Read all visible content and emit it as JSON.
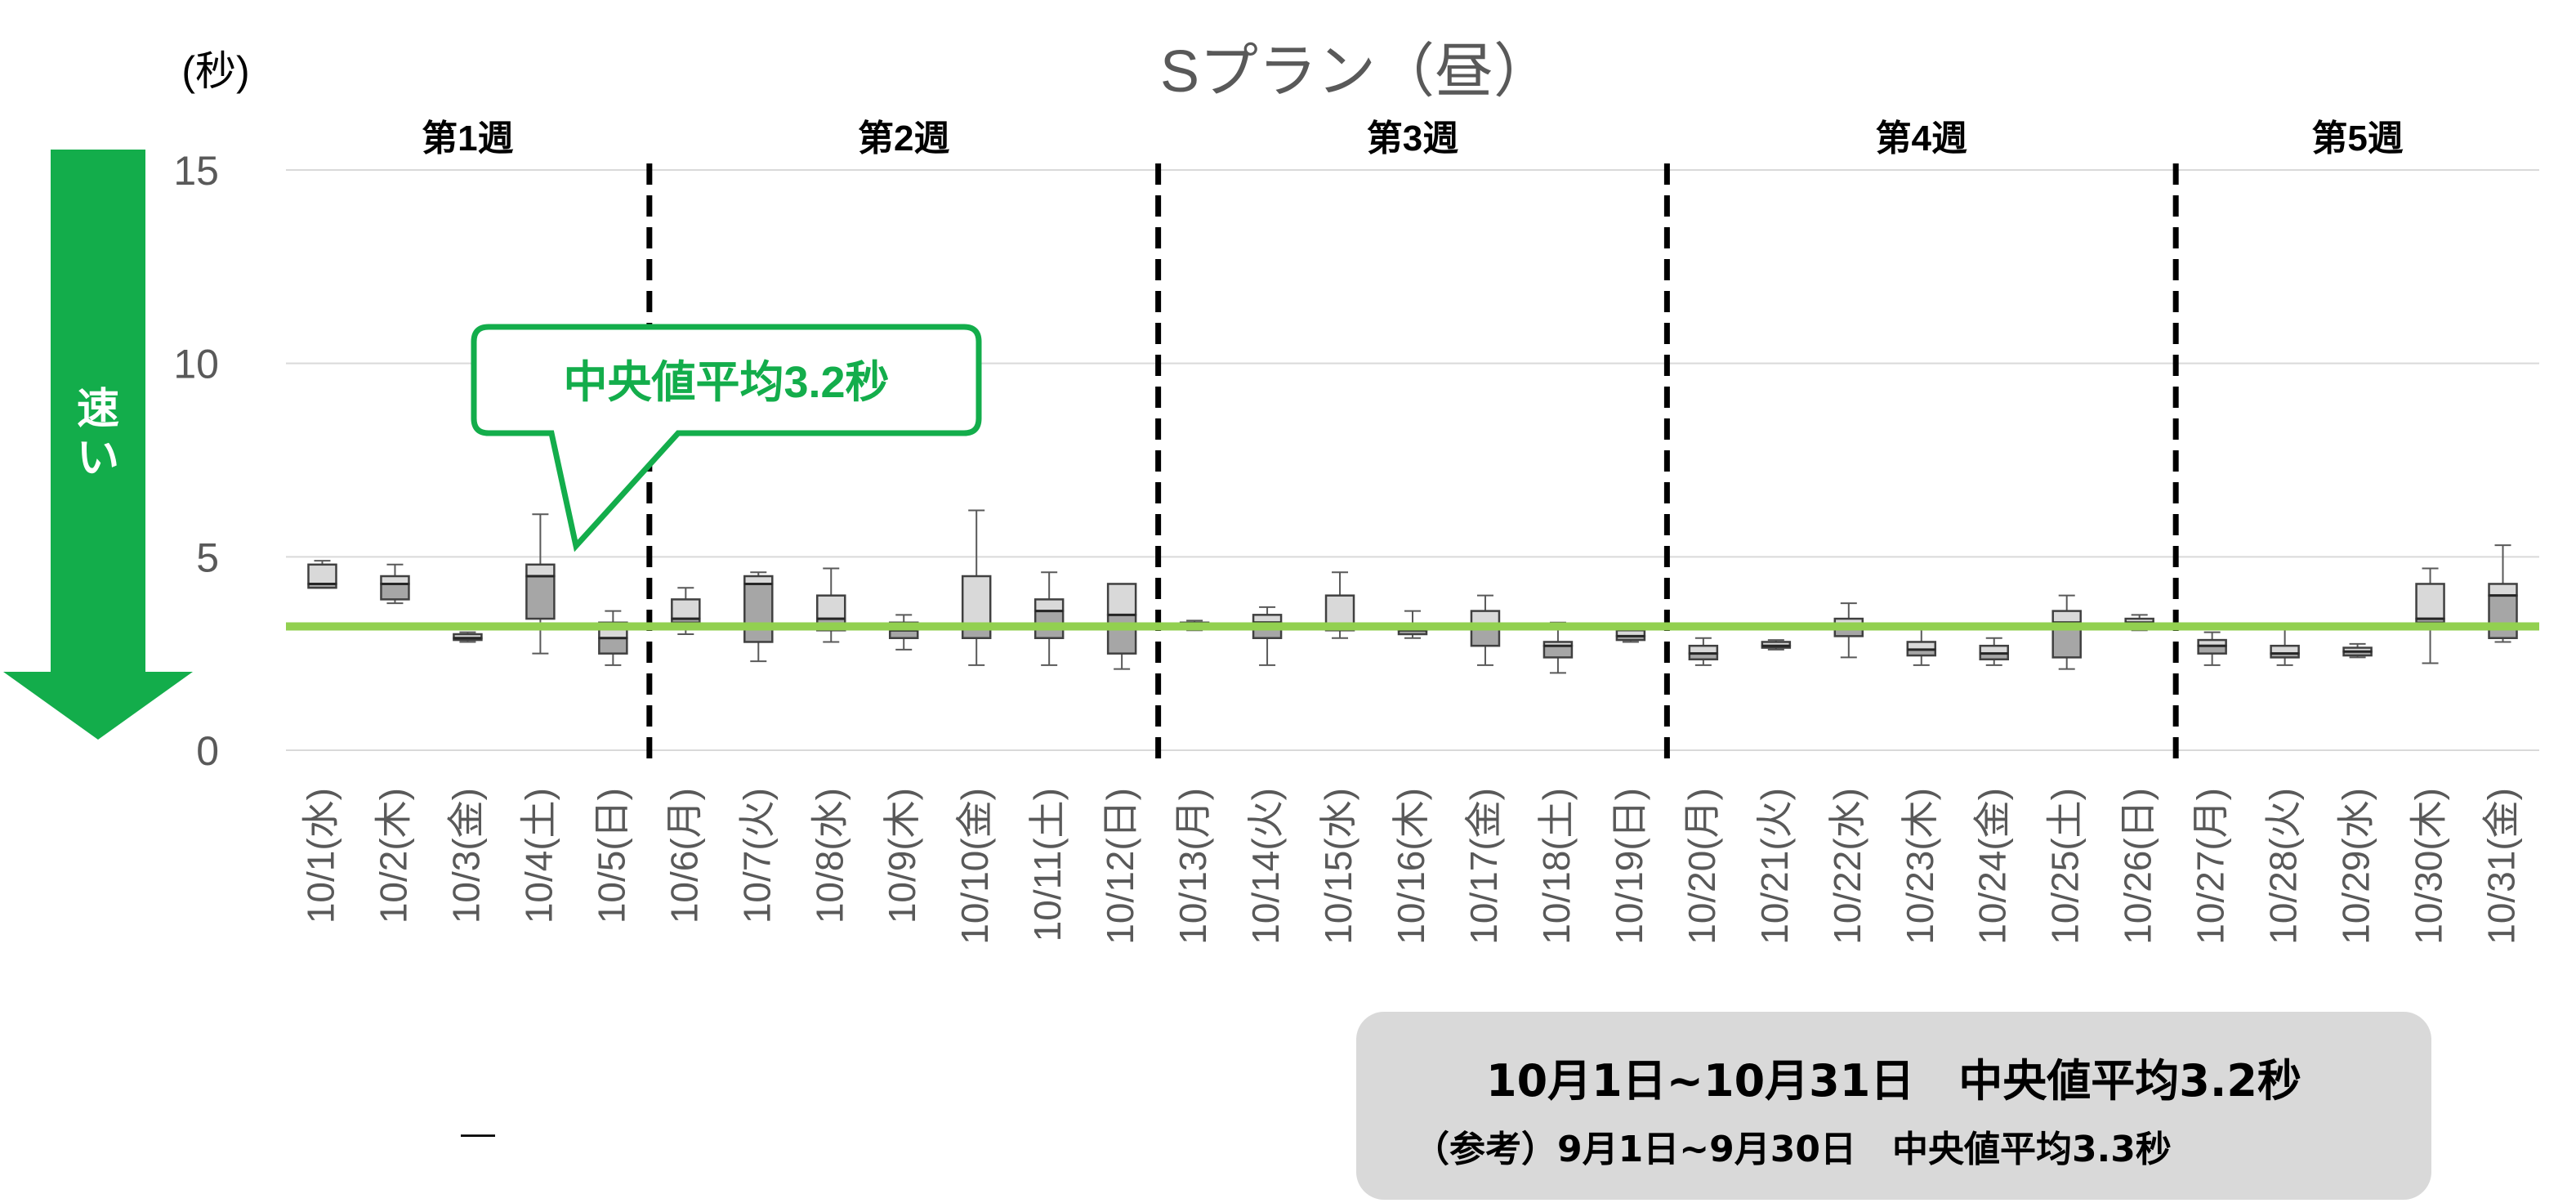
{
  "chart_data": {
    "type": "boxplot",
    "title": "Sプラン（昼）",
    "unit_label": "(秒)",
    "ylim": [
      0,
      15
    ],
    "yticks": [
      0,
      5,
      10,
      15
    ],
    "grid": true,
    "categories": [
      "10/1(水)",
      "10/2(木)",
      "10/3(金)",
      "10/4(土)",
      "10/5(日)",
      "10/6(月)",
      "10/7(火)",
      "10/8(水)",
      "10/9(木)",
      "10/10(金)",
      "10/11(土)",
      "10/12(日)",
      "10/13(月)",
      "10/14(火)",
      "10/15(水)",
      "10/16(木)",
      "10/17(金)",
      "10/18(土)",
      "10/19(日)",
      "10/20(月)",
      "10/21(火)",
      "10/22(水)",
      "10/23(木)",
      "10/24(金)",
      "10/25(土)",
      "10/26(日)",
      "10/27(月)",
      "10/28(火)",
      "10/29(水)",
      "10/30(木)",
      "10/31(金)"
    ],
    "boxes": [
      {
        "min": 4.2,
        "q1": 4.2,
        "median": 4.3,
        "q3": 4.8,
        "max": 4.9
      },
      {
        "min": 3.8,
        "q1": 3.9,
        "median": 4.3,
        "q3": 4.5,
        "max": 4.8
      },
      {
        "min": 2.8,
        "q1": 2.85,
        "median": 2.9,
        "q3": 3.0,
        "max": 3.05
      },
      {
        "min": 2.5,
        "q1": 3.4,
        "median": 4.5,
        "q3": 4.8,
        "max": 6.1
      },
      {
        "min": 2.2,
        "q1": 2.5,
        "median": 2.9,
        "q3": 3.3,
        "max": 3.6
      },
      {
        "min": 3.0,
        "q1": 3.3,
        "median": 3.4,
        "q3": 3.9,
        "max": 4.2
      },
      {
        "min": 2.3,
        "q1": 2.8,
        "median": 4.3,
        "q3": 4.5,
        "max": 4.6
      },
      {
        "min": 2.8,
        "q1": 3.1,
        "median": 3.4,
        "q3": 4.0,
        "max": 4.7
      },
      {
        "min": 2.6,
        "q1": 2.9,
        "median": 3.1,
        "q3": 3.3,
        "max": 3.5
      },
      {
        "min": 2.2,
        "q1": 2.9,
        "median": 3.2,
        "q3": 4.5,
        "max": 6.2
      },
      {
        "min": 2.2,
        "q1": 2.9,
        "median": 3.6,
        "q3": 3.9,
        "max": 4.6
      },
      {
        "min": 2.1,
        "q1": 2.5,
        "median": 3.5,
        "q3": 4.3,
        "max": 4.3
      },
      {
        "min": 3.1,
        "q1": 3.15,
        "median": 3.2,
        "q3": 3.3,
        "max": 3.35
      },
      {
        "min": 2.2,
        "q1": 2.9,
        "median": 3.3,
        "q3": 3.5,
        "max": 3.7
      },
      {
        "min": 2.9,
        "q1": 3.1,
        "median": 3.2,
        "q3": 4.0,
        "max": 4.6
      },
      {
        "min": 2.9,
        "q1": 3.0,
        "median": 3.1,
        "q3": 3.2,
        "max": 3.6
      },
      {
        "min": 2.2,
        "q1": 2.7,
        "median": 3.2,
        "q3": 3.6,
        "max": 4.0
      },
      {
        "min": 2.0,
        "q1": 2.4,
        "median": 2.7,
        "q3": 2.8,
        "max": 3.3
      },
      {
        "min": 2.8,
        "q1": 2.85,
        "median": 2.95,
        "q3": 3.1,
        "max": 3.2
      },
      {
        "min": 2.2,
        "q1": 2.35,
        "median": 2.5,
        "q3": 2.7,
        "max": 2.9
      },
      {
        "min": 2.6,
        "q1": 2.65,
        "median": 2.7,
        "q3": 2.8,
        "max": 2.85
      },
      {
        "min": 2.4,
        "q1": 2.95,
        "median": 3.2,
        "q3": 3.4,
        "max": 3.8
      },
      {
        "min": 2.2,
        "q1": 2.45,
        "median": 2.6,
        "q3": 2.8,
        "max": 3.2
      },
      {
        "min": 2.2,
        "q1": 2.35,
        "median": 2.5,
        "q3": 2.7,
        "max": 2.9
      },
      {
        "min": 2.1,
        "q1": 2.4,
        "median": 3.3,
        "q3": 3.6,
        "max": 4.0
      },
      {
        "min": 3.1,
        "q1": 3.2,
        "median": 3.3,
        "q3": 3.4,
        "max": 3.5
      },
      {
        "min": 2.2,
        "q1": 2.5,
        "median": 2.7,
        "q3": 2.85,
        "max": 3.05
      },
      {
        "min": 2.2,
        "q1": 2.4,
        "median": 2.5,
        "q3": 2.7,
        "max": 3.2
      },
      {
        "min": 2.4,
        "q1": 2.45,
        "median": 2.55,
        "q3": 2.65,
        "max": 2.75
      },
      {
        "min": 2.25,
        "q1": 3.3,
        "median": 3.4,
        "q3": 4.3,
        "max": 4.7
      },
      {
        "min": 2.8,
        "q1": 2.9,
        "median": 4.0,
        "q3": 4.3,
        "max": 5.3
      }
    ],
    "average_median": 3.2,
    "week_labels": [
      "第1週",
      "第2週",
      "第3週",
      "第4週",
      "第5週"
    ],
    "week_dividers_after_index": [
      4,
      11,
      18,
      25
    ],
    "colors": {
      "average_line": "#92d050",
      "accent_green": "#13ad4b",
      "box_light": "#d9d9d9",
      "box_dark": "#a6a6a6"
    }
  },
  "speed_arrow_label": "速い",
  "callout": {
    "text": "中央値平均3.2秒"
  },
  "summary": {
    "main": "10月1日~10月31日　中央値平均3.2秒",
    "reference": "（参考）9月1日~9月30日　中央値平均3.3秒"
  },
  "stray_mark": "—"
}
